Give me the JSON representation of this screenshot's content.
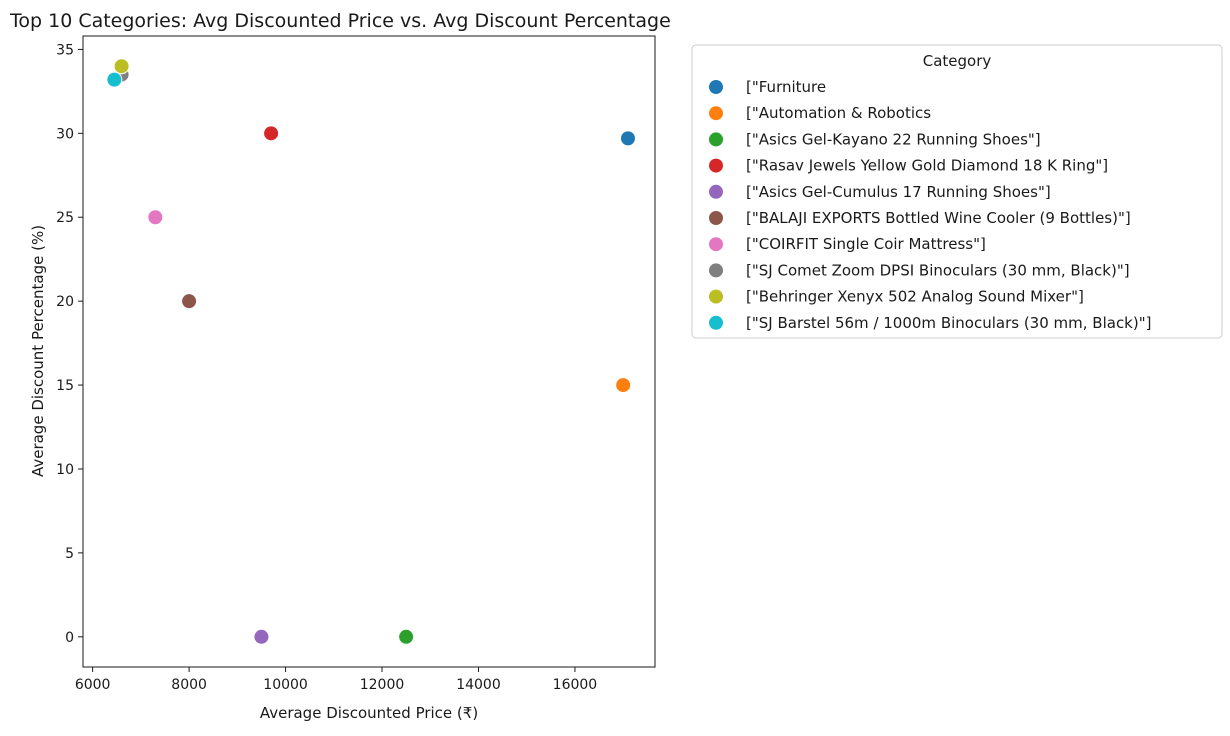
{
  "chart_data": {
    "type": "scatter",
    "title": "Top 10 Categories: Avg Discounted Price vs. Avg Discount Percentage",
    "xlabel": "Average Discounted Price (₹)",
    "ylabel": "Average Discount Percentage (%)",
    "xlim": [
      5800,
      17660
    ],
    "ylim": [
      -1.8,
      35.8
    ],
    "xticks": [
      6000,
      8000,
      10000,
      12000,
      14000,
      16000
    ],
    "yticks": [
      0,
      5,
      10,
      15,
      20,
      25,
      30,
      35
    ],
    "grid": false,
    "legend": {
      "title": "Category",
      "placement": "outside-right"
    },
    "series": [
      {
        "name": "[\"Furniture",
        "color": "#1f77b4",
        "x": 17100,
        "y": 29.7
      },
      {
        "name": "[\"Automation & Robotics",
        "color": "#ff7f0e",
        "x": 17000,
        "y": 15.0
      },
      {
        "name": "[\"Asics Gel-Kayano 22 Running Shoes\"]",
        "color": "#2ca02c",
        "x": 12500,
        "y": 0.0
      },
      {
        "name": "[\"Rasav Jewels Yellow Gold Diamond 18 K Ring\"]",
        "color": "#d62728",
        "x": 9700,
        "y": 30.0
      },
      {
        "name": "[\"Asics Gel-Cumulus 17 Running Shoes\"]",
        "color": "#9467bd",
        "x": 9500,
        "y": 0.0
      },
      {
        "name": "[\"BALAJI EXPORTS Bottled Wine Cooler (9 Bottles)\"]",
        "color": "#8c564b",
        "x": 8000,
        "y": 20.0
      },
      {
        "name": "[\"COIRFIT Single Coir Mattress\"]",
        "color": "#e377c2",
        "x": 7300,
        "y": 25.0
      },
      {
        "name": "[\"SJ Comet Zoom DPSI Binoculars (30 mm, Black)\"]",
        "color": "#7f7f7f",
        "x": 6600,
        "y": 33.5
      },
      {
        "name": "[\"Behringer Xenyx 502 Analog Sound Mixer\"]",
        "color": "#bcbd22",
        "x": 6600,
        "y": 34.0
      },
      {
        "name": "[\"SJ Barstel 56m / 1000m Binoculars (30 mm, Black)\"]",
        "color": "#17becf",
        "x": 6450,
        "y": 33.2
      }
    ]
  }
}
